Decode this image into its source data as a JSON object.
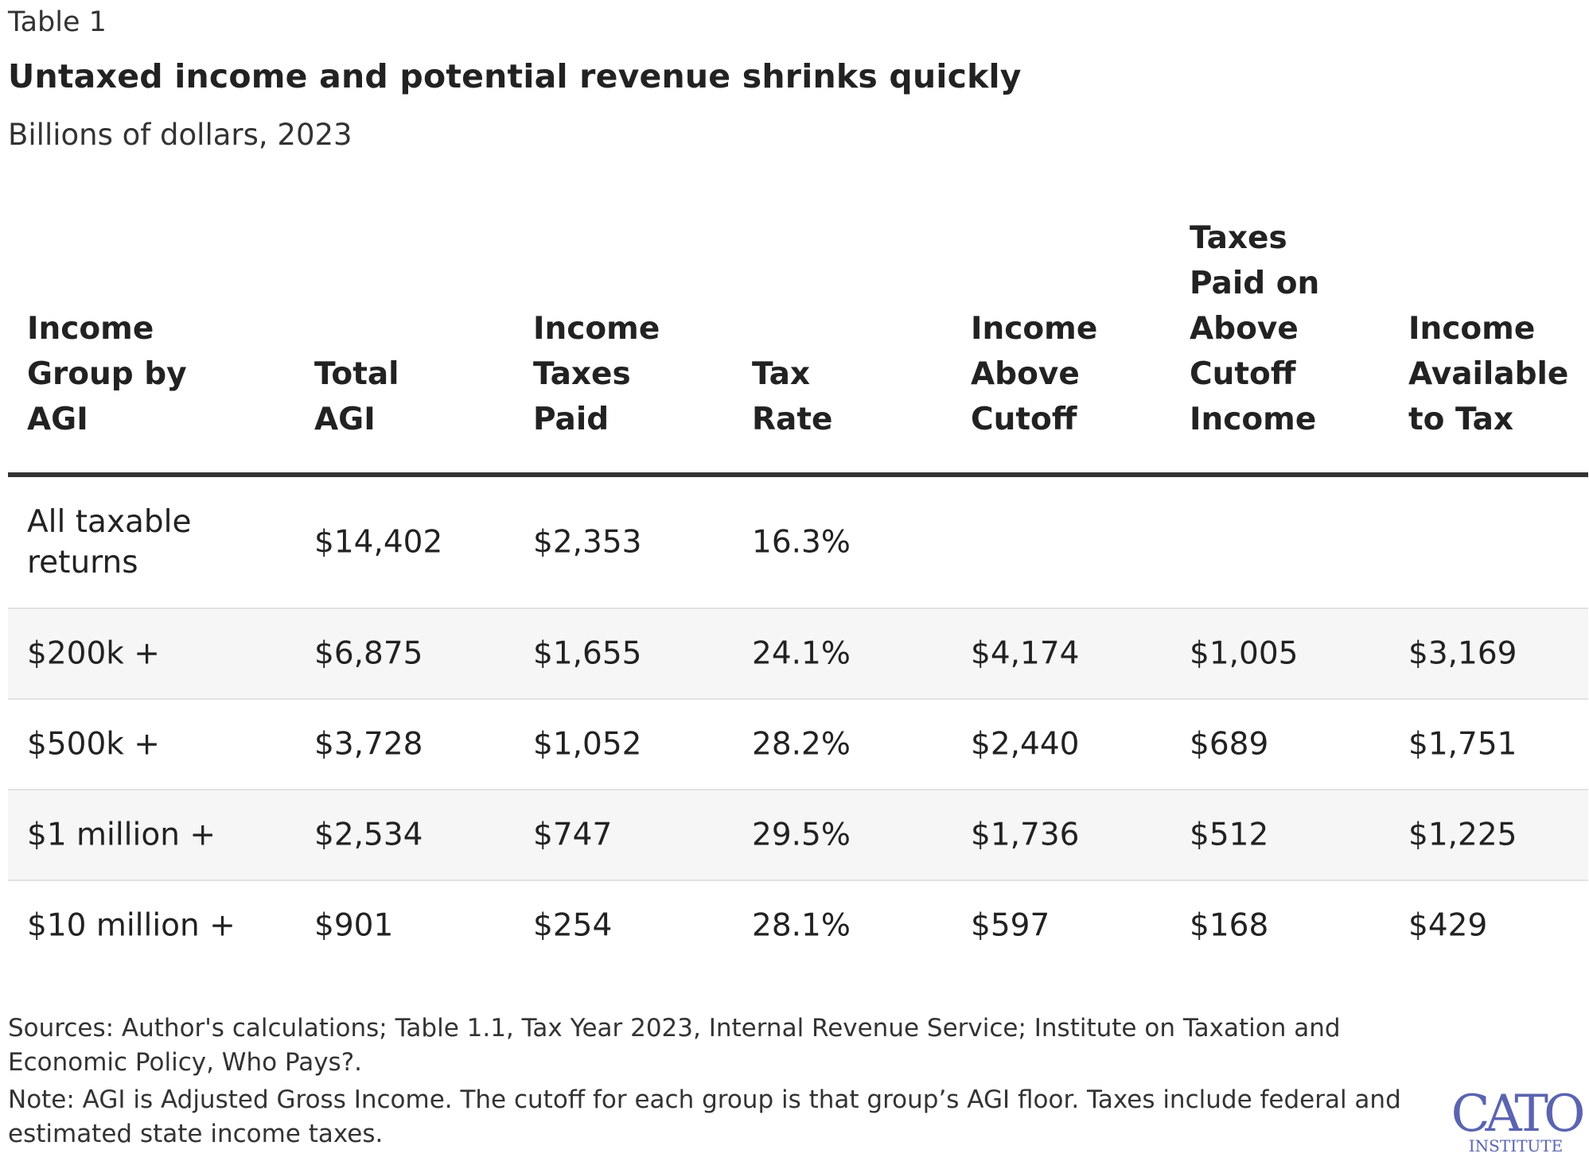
{
  "table_label": "Table 1",
  "title": "Untaxed income and potential revenue shrinks quickly",
  "subtitle": "Billions of dollars, 2023",
  "columns": [
    [
      "Income",
      "Group by",
      "AGI"
    ],
    [
      "Total",
      "AGI"
    ],
    [
      "Income",
      "Taxes",
      "Paid"
    ],
    [
      "Tax",
      "Rate"
    ],
    [
      "Income",
      "Above",
      "Cutoff"
    ],
    [
      "Taxes",
      "Paid on",
      "Above",
      "Cutoff",
      "Income"
    ],
    [
      "Income",
      "Available",
      "to Tax"
    ]
  ],
  "rows": [
    [
      "All taxable returns",
      "$14,402",
      "$2,353",
      "16.3%",
      "",
      "",
      ""
    ],
    [
      "$200k +",
      "$6,875",
      "$1,655",
      "24.1%",
      "$4,174",
      "$1,005",
      "$3,169"
    ],
    [
      "$500k +",
      "$3,728",
      "$1,052",
      "28.2%",
      "$2,440",
      "$689",
      "$1,751"
    ],
    [
      "$1 million +",
      "$2,534",
      "$747",
      "29.5%",
      "$1,736",
      "$512",
      "$1,225"
    ],
    [
      "$10 million +",
      "$901",
      "$254",
      "28.1%",
      "$597",
      "$168",
      "$429"
    ]
  ],
  "sources": "Sources: Author's calculations; Table 1.1, Tax Year 2023, Internal Revenue Service; Institute on Taxation and Economic Policy, Who Pays?.",
  "note": "Note: AGI is Adjusted Gross Income. The cutoff for each group is that group’s AGI floor. Taxes include federal and estimated state income taxes.",
  "logo": {
    "top": "CATO",
    "bottom": "INSTITUTE",
    "color": "#5a64b0"
  }
}
